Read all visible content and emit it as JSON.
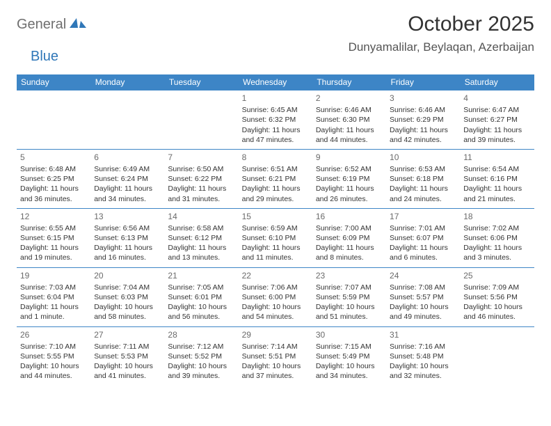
{
  "logo": {
    "part1": "General",
    "part2": "Blue"
  },
  "title": "October 2025",
  "location": "Dunyamalilar, Beylaqan, Azerbaijan",
  "colors": {
    "header_bg": "#3d85c6",
    "header_text": "#ffffff",
    "border": "#3d85c6",
    "logo_gray": "#6f6f6f",
    "logo_blue": "#2f77b8",
    "text": "#333333",
    "daynum": "#6a6a6a"
  },
  "typography": {
    "title_fontsize": 30,
    "location_fontsize": 17,
    "header_fontsize": 12,
    "cell_fontsize": 10.5,
    "daynum_fontsize": 12
  },
  "day_names": [
    "Sunday",
    "Monday",
    "Tuesday",
    "Wednesday",
    "Thursday",
    "Friday",
    "Saturday"
  ],
  "weeks": [
    [
      {
        "day": "",
        "sunrise": "",
        "sunset": "",
        "daylight1": "",
        "daylight2": ""
      },
      {
        "day": "",
        "sunrise": "",
        "sunset": "",
        "daylight1": "",
        "daylight2": ""
      },
      {
        "day": "",
        "sunrise": "",
        "sunset": "",
        "daylight1": "",
        "daylight2": ""
      },
      {
        "day": "1",
        "sunrise": "Sunrise: 6:45 AM",
        "sunset": "Sunset: 6:32 PM",
        "daylight1": "Daylight: 11 hours",
        "daylight2": "and 47 minutes."
      },
      {
        "day": "2",
        "sunrise": "Sunrise: 6:46 AM",
        "sunset": "Sunset: 6:30 PM",
        "daylight1": "Daylight: 11 hours",
        "daylight2": "and 44 minutes."
      },
      {
        "day": "3",
        "sunrise": "Sunrise: 6:46 AM",
        "sunset": "Sunset: 6:29 PM",
        "daylight1": "Daylight: 11 hours",
        "daylight2": "and 42 minutes."
      },
      {
        "day": "4",
        "sunrise": "Sunrise: 6:47 AM",
        "sunset": "Sunset: 6:27 PM",
        "daylight1": "Daylight: 11 hours",
        "daylight2": "and 39 minutes."
      }
    ],
    [
      {
        "day": "5",
        "sunrise": "Sunrise: 6:48 AM",
        "sunset": "Sunset: 6:25 PM",
        "daylight1": "Daylight: 11 hours",
        "daylight2": "and 36 minutes."
      },
      {
        "day": "6",
        "sunrise": "Sunrise: 6:49 AM",
        "sunset": "Sunset: 6:24 PM",
        "daylight1": "Daylight: 11 hours",
        "daylight2": "and 34 minutes."
      },
      {
        "day": "7",
        "sunrise": "Sunrise: 6:50 AM",
        "sunset": "Sunset: 6:22 PM",
        "daylight1": "Daylight: 11 hours",
        "daylight2": "and 31 minutes."
      },
      {
        "day": "8",
        "sunrise": "Sunrise: 6:51 AM",
        "sunset": "Sunset: 6:21 PM",
        "daylight1": "Daylight: 11 hours",
        "daylight2": "and 29 minutes."
      },
      {
        "day": "9",
        "sunrise": "Sunrise: 6:52 AM",
        "sunset": "Sunset: 6:19 PM",
        "daylight1": "Daylight: 11 hours",
        "daylight2": "and 26 minutes."
      },
      {
        "day": "10",
        "sunrise": "Sunrise: 6:53 AM",
        "sunset": "Sunset: 6:18 PM",
        "daylight1": "Daylight: 11 hours",
        "daylight2": "and 24 minutes."
      },
      {
        "day": "11",
        "sunrise": "Sunrise: 6:54 AM",
        "sunset": "Sunset: 6:16 PM",
        "daylight1": "Daylight: 11 hours",
        "daylight2": "and 21 minutes."
      }
    ],
    [
      {
        "day": "12",
        "sunrise": "Sunrise: 6:55 AM",
        "sunset": "Sunset: 6:15 PM",
        "daylight1": "Daylight: 11 hours",
        "daylight2": "and 19 minutes."
      },
      {
        "day": "13",
        "sunrise": "Sunrise: 6:56 AM",
        "sunset": "Sunset: 6:13 PM",
        "daylight1": "Daylight: 11 hours",
        "daylight2": "and 16 minutes."
      },
      {
        "day": "14",
        "sunrise": "Sunrise: 6:58 AM",
        "sunset": "Sunset: 6:12 PM",
        "daylight1": "Daylight: 11 hours",
        "daylight2": "and 13 minutes."
      },
      {
        "day": "15",
        "sunrise": "Sunrise: 6:59 AM",
        "sunset": "Sunset: 6:10 PM",
        "daylight1": "Daylight: 11 hours",
        "daylight2": "and 11 minutes."
      },
      {
        "day": "16",
        "sunrise": "Sunrise: 7:00 AM",
        "sunset": "Sunset: 6:09 PM",
        "daylight1": "Daylight: 11 hours",
        "daylight2": "and 8 minutes."
      },
      {
        "day": "17",
        "sunrise": "Sunrise: 7:01 AM",
        "sunset": "Sunset: 6:07 PM",
        "daylight1": "Daylight: 11 hours",
        "daylight2": "and 6 minutes."
      },
      {
        "day": "18",
        "sunrise": "Sunrise: 7:02 AM",
        "sunset": "Sunset: 6:06 PM",
        "daylight1": "Daylight: 11 hours",
        "daylight2": "and 3 minutes."
      }
    ],
    [
      {
        "day": "19",
        "sunrise": "Sunrise: 7:03 AM",
        "sunset": "Sunset: 6:04 PM",
        "daylight1": "Daylight: 11 hours",
        "daylight2": "and 1 minute."
      },
      {
        "day": "20",
        "sunrise": "Sunrise: 7:04 AM",
        "sunset": "Sunset: 6:03 PM",
        "daylight1": "Daylight: 10 hours",
        "daylight2": "and 58 minutes."
      },
      {
        "day": "21",
        "sunrise": "Sunrise: 7:05 AM",
        "sunset": "Sunset: 6:01 PM",
        "daylight1": "Daylight: 10 hours",
        "daylight2": "and 56 minutes."
      },
      {
        "day": "22",
        "sunrise": "Sunrise: 7:06 AM",
        "sunset": "Sunset: 6:00 PM",
        "daylight1": "Daylight: 10 hours",
        "daylight2": "and 54 minutes."
      },
      {
        "day": "23",
        "sunrise": "Sunrise: 7:07 AM",
        "sunset": "Sunset: 5:59 PM",
        "daylight1": "Daylight: 10 hours",
        "daylight2": "and 51 minutes."
      },
      {
        "day": "24",
        "sunrise": "Sunrise: 7:08 AM",
        "sunset": "Sunset: 5:57 PM",
        "daylight1": "Daylight: 10 hours",
        "daylight2": "and 49 minutes."
      },
      {
        "day": "25",
        "sunrise": "Sunrise: 7:09 AM",
        "sunset": "Sunset: 5:56 PM",
        "daylight1": "Daylight: 10 hours",
        "daylight2": "and 46 minutes."
      }
    ],
    [
      {
        "day": "26",
        "sunrise": "Sunrise: 7:10 AM",
        "sunset": "Sunset: 5:55 PM",
        "daylight1": "Daylight: 10 hours",
        "daylight2": "and 44 minutes."
      },
      {
        "day": "27",
        "sunrise": "Sunrise: 7:11 AM",
        "sunset": "Sunset: 5:53 PM",
        "daylight1": "Daylight: 10 hours",
        "daylight2": "and 41 minutes."
      },
      {
        "day": "28",
        "sunrise": "Sunrise: 7:12 AM",
        "sunset": "Sunset: 5:52 PM",
        "daylight1": "Daylight: 10 hours",
        "daylight2": "and 39 minutes."
      },
      {
        "day": "29",
        "sunrise": "Sunrise: 7:14 AM",
        "sunset": "Sunset: 5:51 PM",
        "daylight1": "Daylight: 10 hours",
        "daylight2": "and 37 minutes."
      },
      {
        "day": "30",
        "sunrise": "Sunrise: 7:15 AM",
        "sunset": "Sunset: 5:49 PM",
        "daylight1": "Daylight: 10 hours",
        "daylight2": "and 34 minutes."
      },
      {
        "day": "31",
        "sunrise": "Sunrise: 7:16 AM",
        "sunset": "Sunset: 5:48 PM",
        "daylight1": "Daylight: 10 hours",
        "daylight2": "and 32 minutes."
      },
      {
        "day": "",
        "sunrise": "",
        "sunset": "",
        "daylight1": "",
        "daylight2": ""
      }
    ]
  ]
}
